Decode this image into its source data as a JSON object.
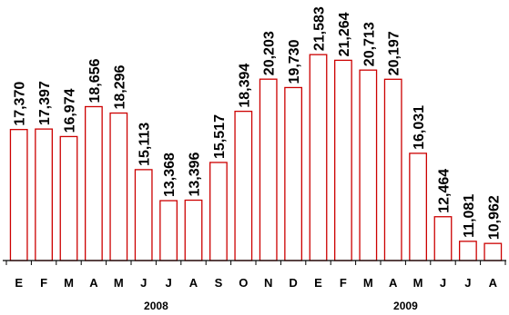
{
  "chart_data": {
    "type": "bar",
    "categories": [
      "E",
      "F",
      "M",
      "A",
      "M",
      "J",
      "J",
      "A",
      "S",
      "O",
      "N",
      "D",
      "E",
      "F",
      "M",
      "A",
      "M",
      "J",
      "J",
      "A"
    ],
    "values": [
      17370,
      17397,
      16974,
      18656,
      18296,
      15113,
      13368,
      13396,
      15517,
      18394,
      20203,
      19730,
      21583,
      21264,
      20713,
      20197,
      16031,
      12464,
      11081,
      10962
    ],
    "data_labels": [
      "17,370",
      "17,397",
      "16,974",
      "18,656",
      "18,296",
      "15,113",
      "13,368",
      "13,396",
      "15,517",
      "18,394",
      "20,203",
      "19,730",
      "21,583",
      "21,264",
      "20,713",
      "20,197",
      "16,031",
      "12,464",
      "11,081",
      "10,962"
    ],
    "year_groups": [
      {
        "label": "2008",
        "start": 0,
        "end": 11
      },
      {
        "label": "2009",
        "start": 12,
        "end": 19
      }
    ],
    "title": "",
    "xlabel": "",
    "ylabel": "",
    "ylim": [
      10000,
      22000
    ],
    "grid": false,
    "bar_fill": "#ffffff",
    "bar_stroke": "#cc0000",
    "axis_color": "#000000"
  }
}
